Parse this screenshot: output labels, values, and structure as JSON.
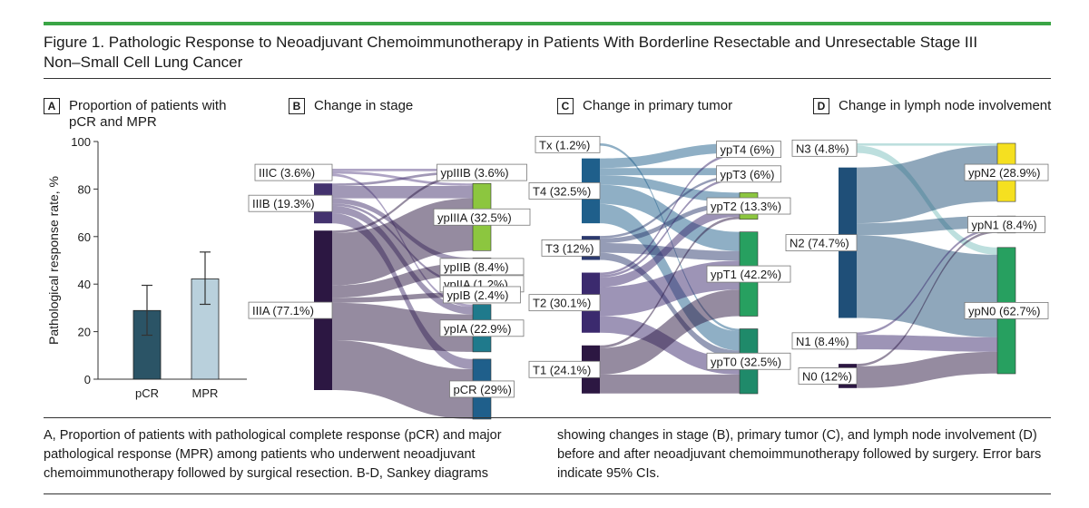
{
  "figure": {
    "title_line1": "Figure 1. Pathologic Response to Neoadjuvant Chemoimmunotherapy in Patients With Borderline Resectable and Unresectable Stage III",
    "title_line2": "Non–Small Cell Lung Cancer",
    "caption_left": "A, Proportion of patients with pathological complete response (pCR) and major pathological response (MPR) among patients who underwent neoadjuvant chemoimmunotherapy followed by surgical resection. B-D, Sankey diagrams",
    "caption_right": "showing changes in stage (B), primary tumor (C), and lymph node involvement (D) before and after neoadjuvant chemoimmunotherapy followed by surgery. Error bars indicate 95% CIs.",
    "accent_color": "#3aa545"
  },
  "panels": [
    {
      "letter": "A",
      "title": "Proportion of patients with pCR and MPR"
    },
    {
      "letter": "B",
      "title": "Change in stage"
    },
    {
      "letter": "C",
      "title": "Change in primary tumor"
    },
    {
      "letter": "D",
      "title": "Change in lymph node involvement"
    }
  ],
  "chart_data": [
    {
      "type": "bar",
      "panel": "A",
      "categories": [
        "pCR",
        "MPR"
      ],
      "values": [
        28.9,
        42.2
      ],
      "ci_low": [
        18.5,
        31.5
      ],
      "ci_high": [
        39.5,
        53.5
      ],
      "colors": [
        "#2b5466",
        "#b9d0dc"
      ],
      "ylabel": "Pathological response rate, %",
      "ylim": [
        0,
        100
      ],
      "yticks": [
        0,
        20,
        40,
        60,
        80,
        100
      ]
    },
    {
      "type": "sankey",
      "panel": "B",
      "left": [
        {
          "label": "IIIC (3.6%)",
          "value": 3.6,
          "color": "#5d4a8a"
        },
        {
          "label": "IIIB (19.3%)",
          "value": 19.3,
          "color": "#43326e"
        },
        {
          "label": "IIIA (77.1%)",
          "value": 77.1,
          "color": "#2c1742"
        }
      ],
      "right": [
        {
          "label": "ypIIIB (3.6%)",
          "value": 3.6,
          "color": "#8cc63f"
        },
        {
          "label": "ypIIIA (32.5%)",
          "value": 32.5,
          "color": "#8cc63f"
        },
        {
          "label": "ypIIB (8.4%)",
          "value": 8.4,
          "color": "#1f8a8a"
        },
        {
          "label": "ypIIA (1.2%)",
          "value": 1.2,
          "color": "#1f8a8a"
        },
        {
          "label": "ypIB (2.4%)",
          "value": 2.4,
          "color": "#1f8a8a"
        },
        {
          "label": "ypIA (22.9%)",
          "value": 22.9,
          "color": "#1f7a8c"
        },
        {
          "label": "pCR (29%)",
          "value": 29,
          "color": "#1f5f8b"
        }
      ],
      "links": [
        [
          0,
          0,
          1.2
        ],
        [
          0,
          1,
          1.2
        ],
        [
          0,
          5,
          1.2
        ],
        [
          1,
          0,
          1.2
        ],
        [
          1,
          1,
          6.0
        ],
        [
          1,
          2,
          2.4
        ],
        [
          1,
          3,
          1.2
        ],
        [
          1,
          5,
          3.6
        ],
        [
          1,
          6,
          4.9
        ],
        [
          2,
          0,
          1.2
        ],
        [
          2,
          1,
          25.3
        ],
        [
          2,
          2,
          6.0
        ],
        [
          2,
          4,
          2.4
        ],
        [
          2,
          5,
          18.1
        ],
        [
          2,
          6,
          24.1
        ]
      ]
    },
    {
      "type": "sankey",
      "panel": "C",
      "left": [
        {
          "label": "Tx (1.2%)",
          "value": 1.2,
          "color": "#1f5f8b"
        },
        {
          "label": "T4 (32.5%)",
          "value": 32.5,
          "color": "#1f5f8b"
        },
        {
          "label": "T3 (12%)",
          "value": 12,
          "color": "#2c3a6e"
        },
        {
          "label": "T2 (30.1%)",
          "value": 30.1,
          "color": "#3b2a6e"
        },
        {
          "label": "T1 (24.1%)",
          "value": 24.1,
          "color": "#2c1742"
        }
      ],
      "right": [
        {
          "label": "ypT4 (6%)",
          "value": 6,
          "color": "#8cc63f"
        },
        {
          "label": "ypT3 (6%)",
          "value": 6,
          "color": "#8cc63f"
        },
        {
          "label": "ypT2 (13.3%)",
          "value": 13.3,
          "color": "#8cc63f"
        },
        {
          "label": "ypT1 (42.2%)",
          "value": 42.2,
          "color": "#27a060"
        },
        {
          "label": "ypT0 (32.5%)",
          "value": 32.5,
          "color": "#1f8a6a"
        }
      ],
      "links": [
        [
          0,
          4,
          1.2
        ],
        [
          1,
          0,
          4.8
        ],
        [
          1,
          1,
          3.6
        ],
        [
          1,
          2,
          4.8
        ],
        [
          1,
          3,
          9.6
        ],
        [
          1,
          4,
          9.7
        ],
        [
          2,
          1,
          1.2
        ],
        [
          2,
          2,
          2.4
        ],
        [
          2,
          3,
          4.8
        ],
        [
          2,
          4,
          3.6
        ],
        [
          3,
          0,
          1.2
        ],
        [
          3,
          1,
          1.2
        ],
        [
          3,
          2,
          4.8
        ],
        [
          3,
          3,
          14.5
        ],
        [
          3,
          4,
          8.4
        ],
        [
          4,
          2,
          1.3
        ],
        [
          4,
          3,
          13.3
        ],
        [
          4,
          4,
          9.5
        ]
      ]
    },
    {
      "type": "sankey",
      "panel": "D",
      "left": [
        {
          "label": "N3 (4.8%)",
          "value": 4.8,
          "color": "#7cc0bd"
        },
        {
          "label": "N2 (74.7%)",
          "value": 74.7,
          "color": "#1f4f78"
        },
        {
          "label": "N1 (8.4%)",
          "value": 8.4,
          "color": "#3b2a6e"
        },
        {
          "label": "N0 (12%)",
          "value": 12,
          "color": "#2c1742"
        }
      ],
      "right": [
        {
          "label": "ypN2 (28.9%)",
          "value": 28.9,
          "color": "#f5e020"
        },
        {
          "label": "ypN1 (8.4%)",
          "value": 8.4,
          "color": "#e8f0c0"
        },
        {
          "label": "ypN0 (62.7%)",
          "value": 62.7,
          "color": "#27a060"
        }
      ],
      "links": [
        [
          0,
          0,
          1.2
        ],
        [
          0,
          2,
          3.6
        ],
        [
          1,
          0,
          27.7
        ],
        [
          1,
          1,
          6.0
        ],
        [
          1,
          2,
          41.0
        ],
        [
          2,
          1,
          1.2
        ],
        [
          2,
          2,
          7.2
        ],
        [
          3,
          1,
          1.2
        ],
        [
          3,
          2,
          10.8
        ]
      ]
    }
  ]
}
